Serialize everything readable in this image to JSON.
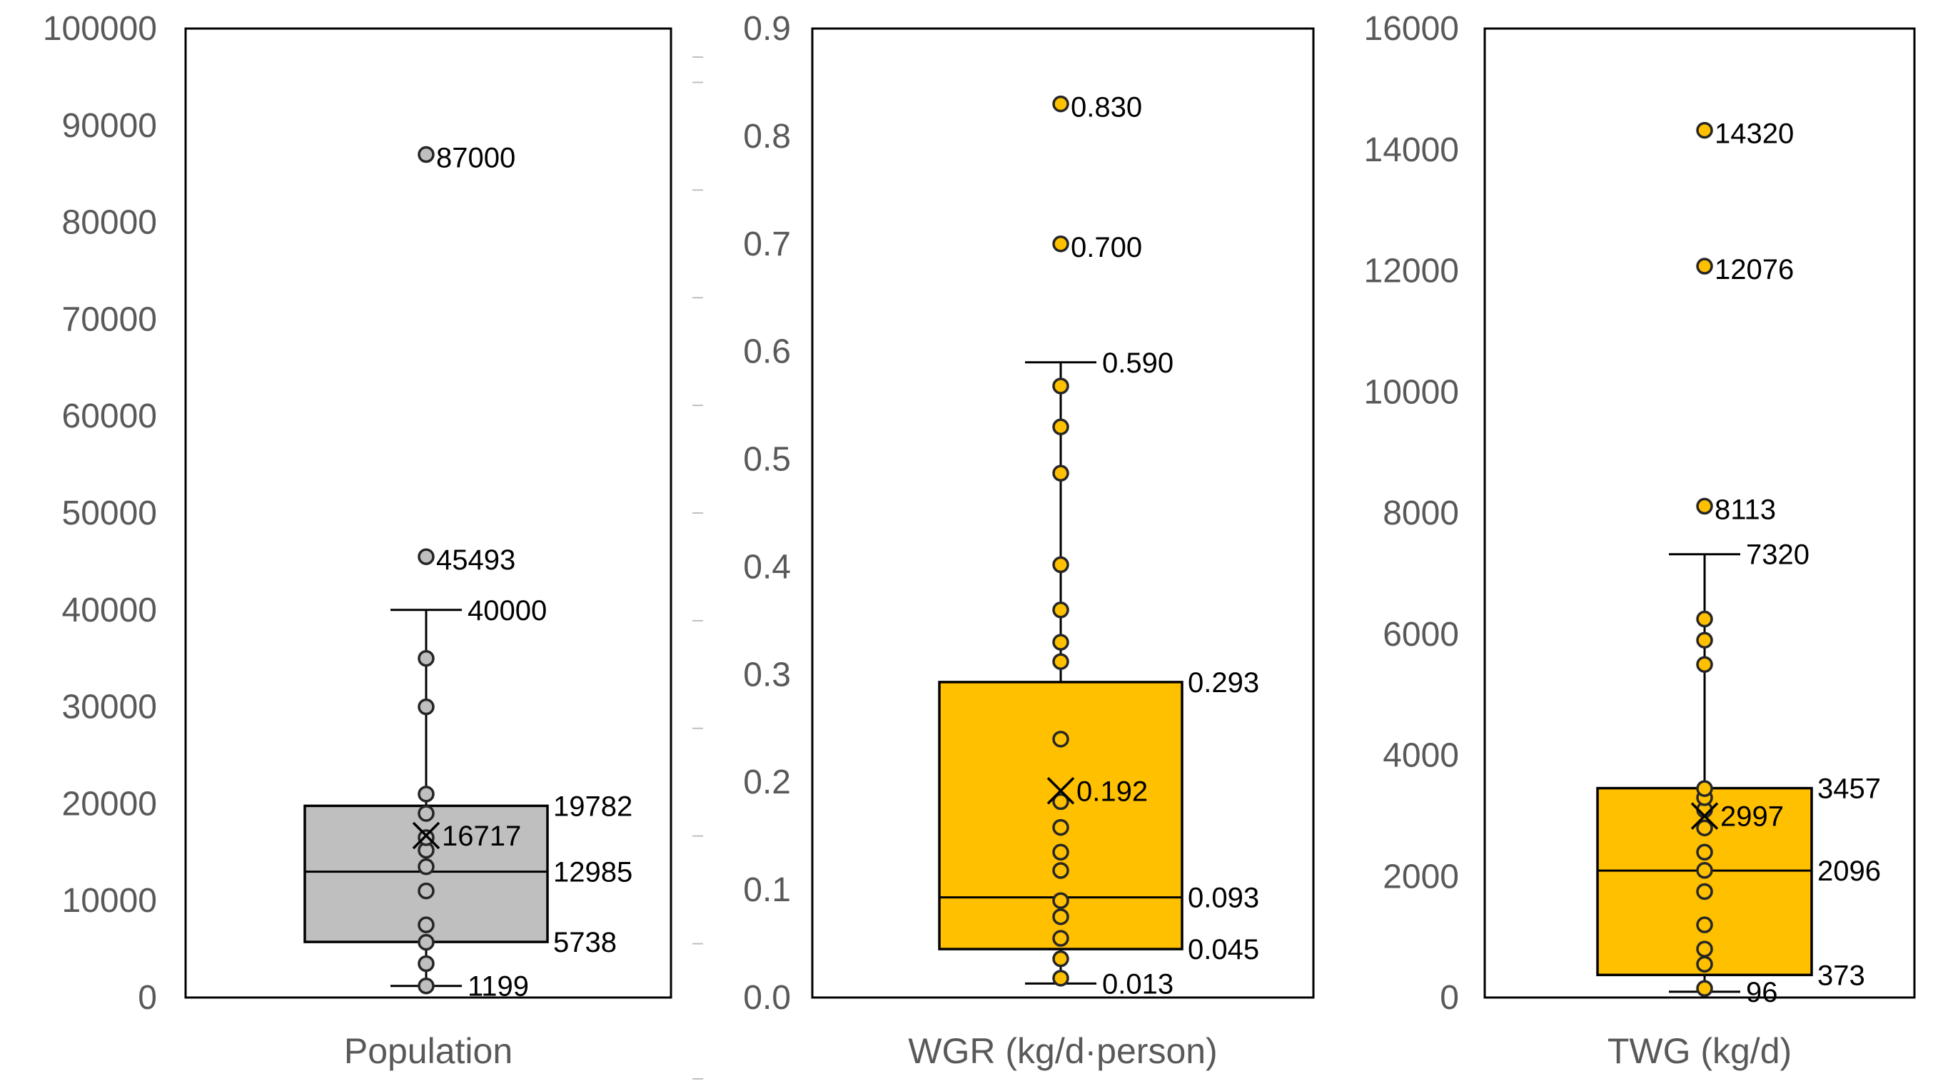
{
  "chart_data": [
    {
      "type": "box",
      "xlabel": "Population",
      "ylim": [
        0,
        100000
      ],
      "yticks": [
        0,
        10000,
        20000,
        30000,
        40000,
        50000,
        60000,
        70000,
        80000,
        90000,
        100000
      ],
      "box_color": "#BFBFBF",
      "point_color": "#BFBFBF",
      "stats": {
        "min": 1199,
        "q1": 5738,
        "median": 12985,
        "q3": 19782,
        "max": 40000,
        "mean": 16717
      },
      "points": [
        1199,
        3500,
        5700,
        7500,
        11000,
        13500,
        15200,
        16500,
        19000,
        21000,
        30000,
        35000
      ],
      "outliers": [
        45493,
        87000
      ],
      "labels": {
        "max": "40000",
        "q3": "19782",
        "mean": "16717",
        "median": "12985",
        "q1": "5738",
        "min": "1199",
        "outlier_0": "45493",
        "outlier_1": "87000"
      }
    },
    {
      "type": "box",
      "xlabel": "WGR (kg/d·person)",
      "ylim": [
        0,
        0.9
      ],
      "yticks": [
        0.0,
        0.1,
        0.2,
        0.3,
        0.4,
        0.5,
        0.6,
        0.7,
        0.8,
        0.9
      ],
      "ytick_decimals": 1,
      "box_color": "#FFC000",
      "point_color": "#FFC000",
      "stats": {
        "min": 0.013,
        "q1": 0.045,
        "median": 0.093,
        "q3": 0.293,
        "max": 0.59,
        "mean": 0.192
      },
      "points": [
        0.018,
        0.036,
        0.055,
        0.075,
        0.09,
        0.118,
        0.135,
        0.158,
        0.182,
        0.24,
        0.312,
        0.33,
        0.36,
        0.402,
        0.487,
        0.53,
        0.568
      ],
      "outliers": [
        0.7,
        0.83
      ],
      "labels": {
        "max": "0.590",
        "q3": "0.293",
        "mean": "0.192",
        "median": "0.093",
        "q1": "0.045",
        "min": "0.013",
        "outlier_0": "0.700",
        "outlier_1": "0.830"
      }
    },
    {
      "type": "box",
      "xlabel": "TWG (kg/d)",
      "ylim": [
        0,
        16000
      ],
      "yticks": [
        0,
        2000,
        4000,
        6000,
        8000,
        10000,
        12000,
        14000,
        16000
      ],
      "box_color": "#FFC000",
      "point_color": "#FFC000",
      "stats": {
        "min": 96,
        "q1": 373,
        "median": 2096,
        "q3": 3457,
        "max": 7320,
        "mean": 2997
      },
      "points": [
        150,
        550,
        800,
        1200,
        1750,
        2100,
        2400,
        2800,
        3100,
        3300,
        3450,
        5500,
        5900,
        6250
      ],
      "outliers": [
        8113,
        12076,
        14320
      ],
      "labels": {
        "max": "7320",
        "q3": "3457",
        "mean": "2997",
        "median": "2096",
        "q1": "373",
        "min": "96",
        "outlier_0": "8113",
        "outlier_1": "12076",
        "outlier_2": "14320"
      }
    }
  ]
}
